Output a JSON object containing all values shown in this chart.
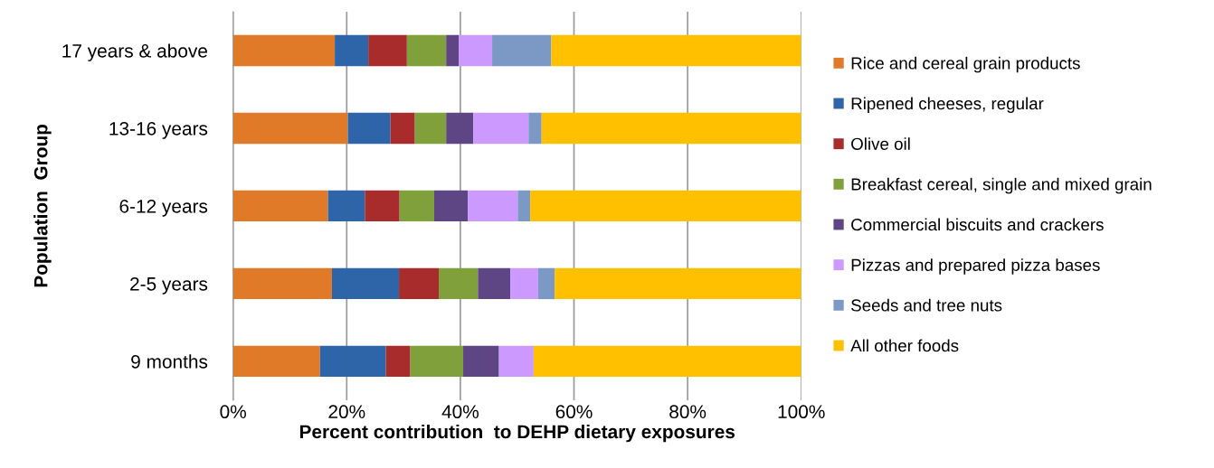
{
  "chart_data": {
    "type": "bar",
    "orientation": "horizontal",
    "stacked": true,
    "categories": [
      "17 years & above",
      "13-16 years",
      "6-12 years",
      "2-5 years",
      "9 months"
    ],
    "xlabel": "Percent contribution  to DEHP dietary exposures",
    "ylabel": "Population  Group",
    "xlim": [
      0,
      100
    ],
    "xticks": [
      {
        "value": 0,
        "label": "0%"
      },
      {
        "value": 20,
        "label": "20%"
      },
      {
        "value": 40,
        "label": "40%"
      },
      {
        "value": 60,
        "label": "60%"
      },
      {
        "value": 80,
        "label": "80%"
      },
      {
        "value": 100,
        "label": "100%"
      }
    ],
    "grid": "x",
    "legend": "right",
    "series": [
      {
        "name": "Rice and cereal grain products",
        "color": "#e07a28",
        "values": [
          17.9,
          20.2,
          16.7,
          17.4,
          15.3
        ]
      },
      {
        "name": "Ripened cheeses, regular",
        "color": "#2e64a8",
        "values": [
          5.9,
          7.5,
          6.5,
          11.8,
          11.6
        ]
      },
      {
        "name": "Olive oil",
        "color": "#a82c2c",
        "values": [
          6.8,
          4.3,
          6.1,
          7.0,
          4.3
        ]
      },
      {
        "name": "Breakfast cereal, single and mixed grain",
        "color": "#7fa03a",
        "values": [
          6.9,
          5.5,
          6.1,
          6.9,
          9.3
        ]
      },
      {
        "name": "Commercial biscuits and crackers",
        "color": "#5e4584",
        "values": [
          2.2,
          4.8,
          5.9,
          5.7,
          6.3
        ]
      },
      {
        "name": "Pizzas and prepared pizza bases",
        "color": "#cc99ff",
        "values": [
          5.9,
          9.7,
          8.8,
          4.9,
          6.1
        ]
      },
      {
        "name": "Seeds and tree nuts",
        "color": "#7c98c4",
        "values": [
          10.4,
          2.3,
          2.2,
          2.9,
          0
        ]
      },
      {
        "name": "All other foods",
        "color": "#ffc000",
        "values": [
          44.0,
          45.7,
          47.7,
          43.4,
          47.1
        ]
      }
    ]
  }
}
